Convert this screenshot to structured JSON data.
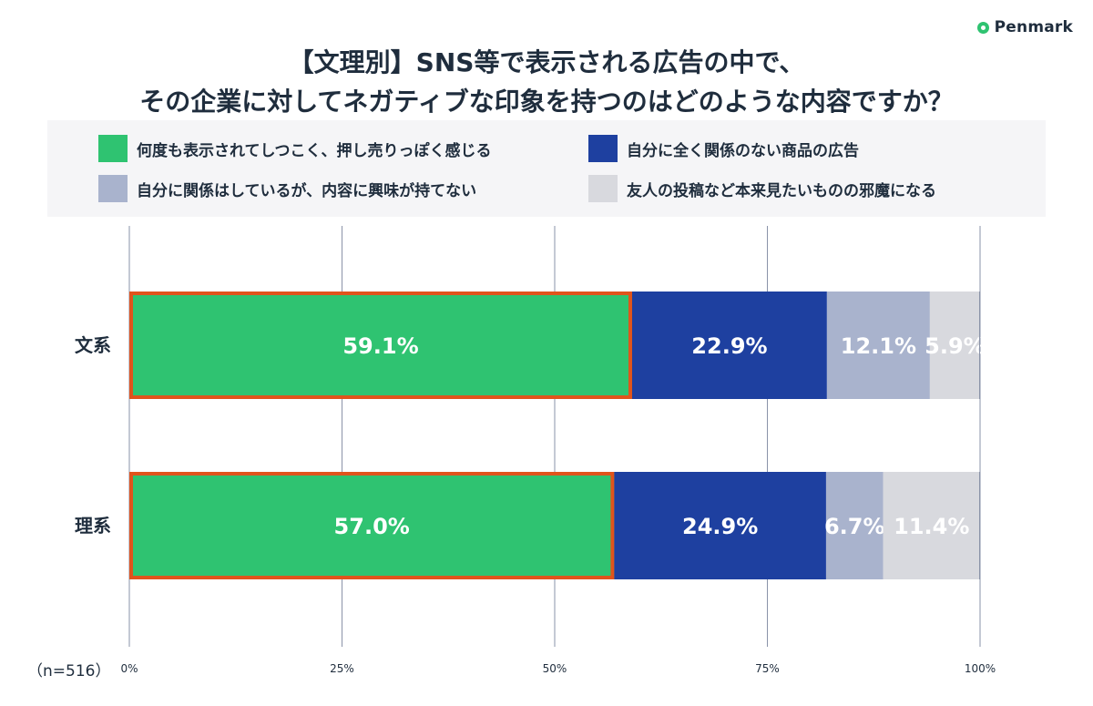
{
  "brand": {
    "name": "Penmark"
  },
  "sample_note": "（n=516）",
  "chart_data": {
    "type": "bar",
    "orientation": "horizontal",
    "stacked": true,
    "title": "【文理別】SNS等で表示される広告の中で、",
    "subtitle": "その企業に対してネガティブな印象を持つのはどのような内容ですか？",
    "categories": [
      "文系",
      "理系"
    ],
    "series": [
      {
        "name": "何度も表示されてしつこく、押し売りっぽく感じる",
        "color": "#2fc371",
        "values": [
          59.1,
          57.0
        ],
        "labels": [
          "59.1%",
          "57.0%"
        ]
      },
      {
        "name": "自分に全く関係のない商品の広告",
        "color": "#1e40a0",
        "values": [
          22.9,
          24.9
        ],
        "labels": [
          "22.9%",
          "24.9%"
        ]
      },
      {
        "name": "自分に関係はしているが、内容に興味が持てない",
        "color": "#a9b3cd",
        "values": [
          12.1,
          6.7
        ],
        "labels": [
          "12.1%",
          "6.7%"
        ]
      },
      {
        "name": "友人の投稿など本来見たいものの邪魔になる",
        "color": "#d8d9de",
        "values": [
          5.9,
          11.4
        ],
        "labels": [
          "5.9%",
          "11.4%"
        ]
      }
    ],
    "highlight_series": 0,
    "highlight_color": "#e0541c",
    "xlim": [
      0,
      100
    ],
    "x_ticks": [
      0,
      25,
      50,
      75,
      100
    ],
    "x_tick_labels": [
      "0%",
      "25%",
      "50%",
      "75%",
      "100%"
    ],
    "grid": true,
    "legend_position": "top"
  }
}
